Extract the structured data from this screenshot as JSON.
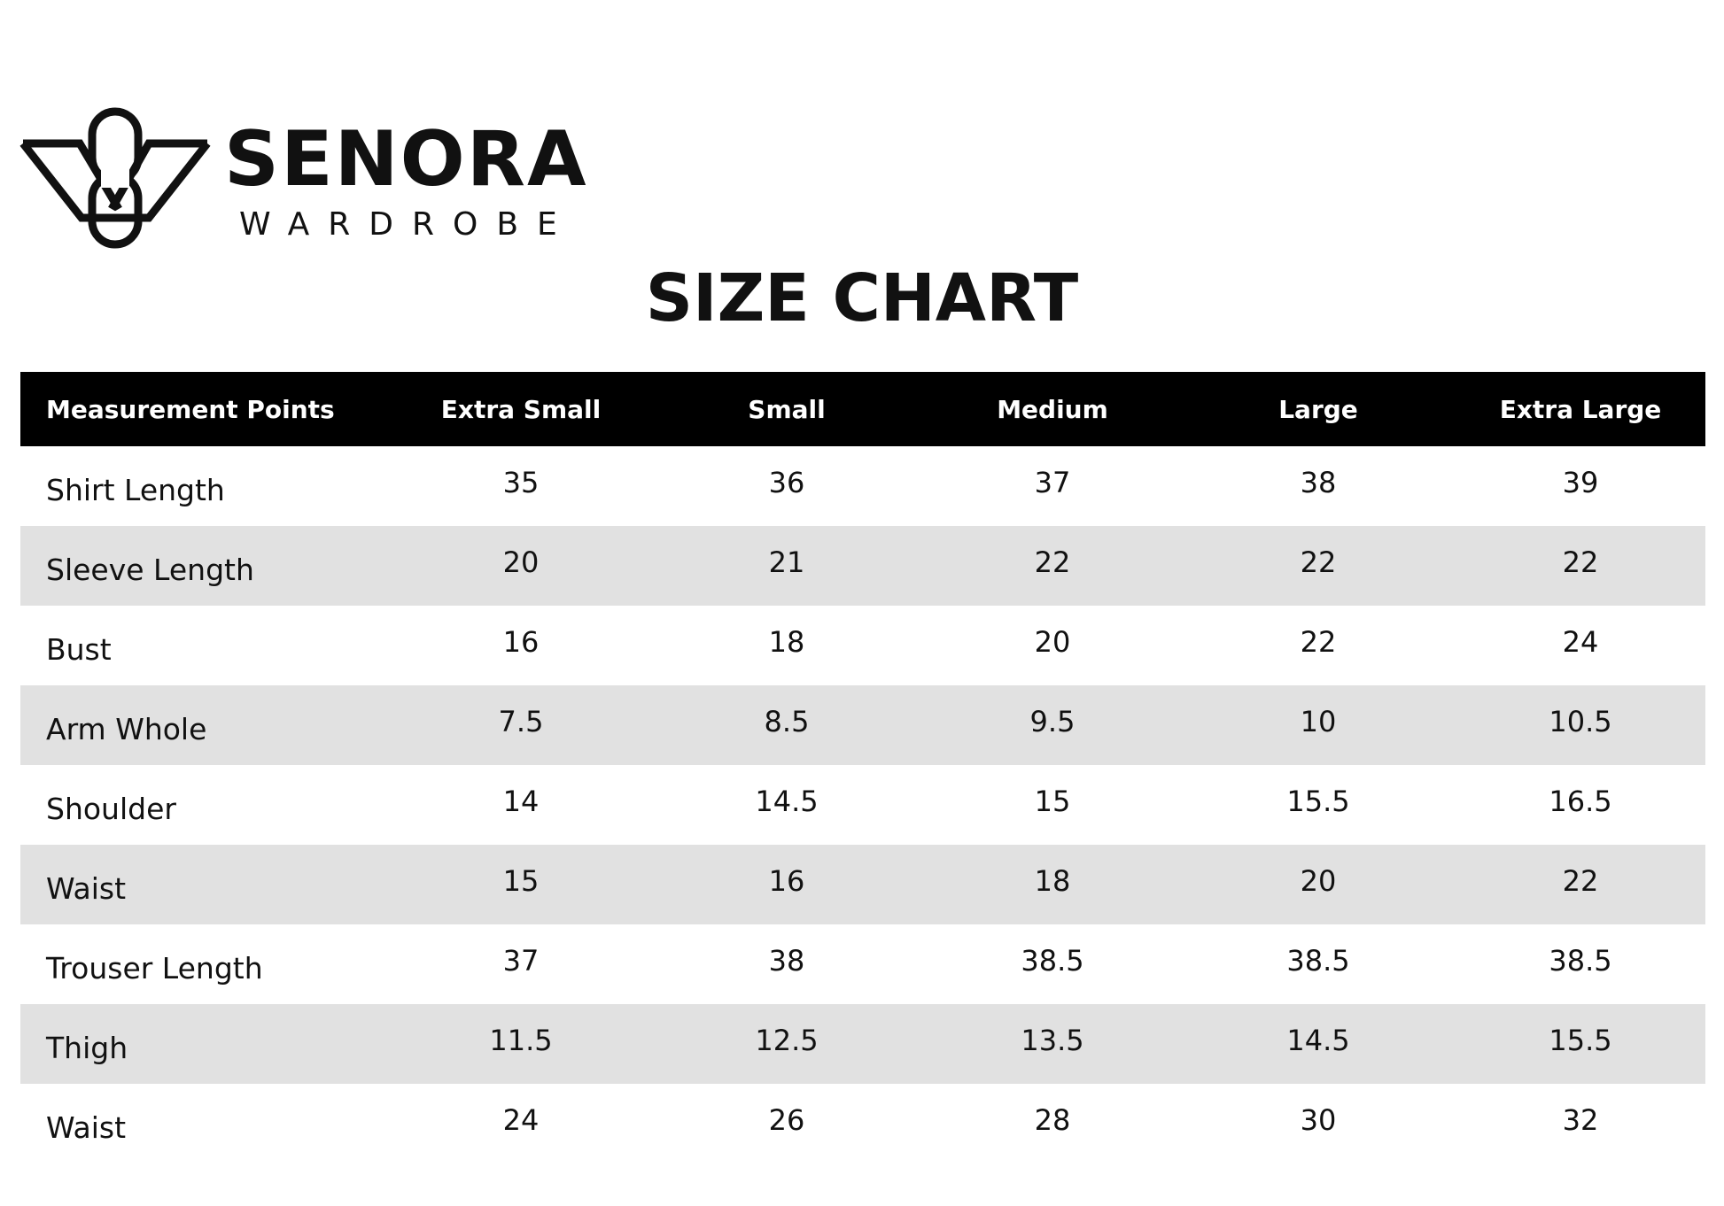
{
  "brand": {
    "name": "SENORA",
    "tagline": "WARDROBE"
  },
  "page_title": "SIZE CHART",
  "colors": {
    "header_bg": "#000000",
    "header_text": "#ffffff",
    "stripe_bg": "#e1e1e1",
    "text": "#111111"
  },
  "table": {
    "headers": [
      "Measurement Points",
      "Extra Small",
      "Small",
      "Medium",
      "Large",
      "Extra Large"
    ],
    "rows": [
      {
        "label": "Shirt Length",
        "values": [
          "35",
          "36",
          "37",
          "38",
          "39"
        ]
      },
      {
        "label": "Sleeve Length",
        "values": [
          "20",
          "21",
          "22",
          "22",
          "22"
        ]
      },
      {
        "label": "Bust",
        "values": [
          "16",
          "18",
          "20",
          "22",
          "24"
        ]
      },
      {
        "label": "Arm Whole",
        "values": [
          "7.5",
          "8.5",
          "9.5",
          "10",
          "10.5"
        ]
      },
      {
        "label": "Shoulder",
        "values": [
          "14",
          "14.5",
          "15",
          "15.5",
          "16.5"
        ]
      },
      {
        "label": "Waist",
        "values": [
          "15",
          "16",
          "18",
          "20",
          "22"
        ]
      },
      {
        "label": "Trouser Length",
        "values": [
          "37",
          "38",
          "38.5",
          "38.5",
          "38.5"
        ]
      },
      {
        "label": "Thigh",
        "values": [
          "11.5",
          "12.5",
          "13.5",
          "14.5",
          "15.5"
        ]
      },
      {
        "label": "Waist",
        "values": [
          "24",
          "26",
          "28",
          "30",
          "32"
        ]
      }
    ]
  }
}
